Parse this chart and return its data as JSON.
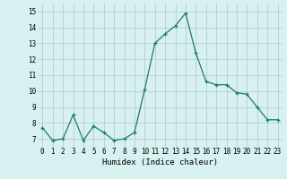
{
  "x": [
    0,
    1,
    2,
    3,
    4,
    5,
    6,
    7,
    8,
    9,
    10,
    11,
    12,
    13,
    14,
    15,
    16,
    17,
    18,
    19,
    20,
    21,
    22,
    23
  ],
  "y": [
    7.7,
    6.9,
    7.0,
    8.5,
    6.9,
    7.8,
    7.4,
    6.9,
    7.0,
    7.4,
    10.1,
    13.0,
    13.6,
    14.1,
    14.9,
    12.4,
    10.6,
    10.4,
    10.4,
    9.9,
    9.8,
    9.0,
    8.2,
    8.2
  ],
  "xlabel": "Humidex (Indice chaleur)",
  "ylim": [
    6.5,
    15.5
  ],
  "xlim": [
    -0.5,
    23.5
  ],
  "yticks": [
    7,
    8,
    9,
    10,
    11,
    12,
    13,
    14,
    15
  ],
  "xticks": [
    0,
    1,
    2,
    3,
    4,
    5,
    6,
    7,
    8,
    9,
    10,
    11,
    12,
    13,
    14,
    15,
    16,
    17,
    18,
    19,
    20,
    21,
    22,
    23
  ],
  "line_color": "#1a7a6e",
  "marker_color": "#1a7a6e",
  "bg_color": "#d8f0f0",
  "grid_color": "#a8cccc",
  "xlabel_fontsize": 6.5,
  "tick_fontsize": 5.5
}
